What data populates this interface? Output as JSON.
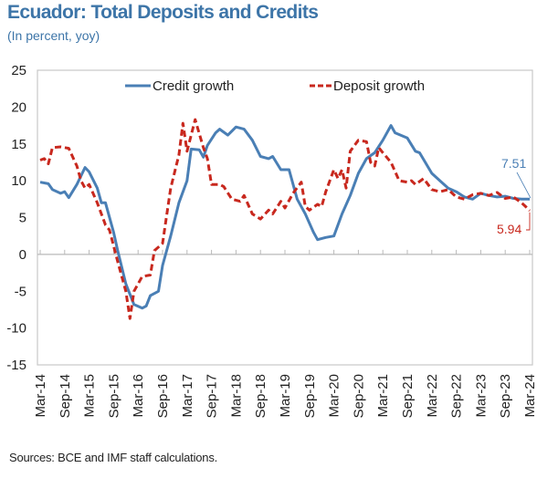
{
  "chart_data": {
    "type": "line",
    "title": "Ecuador: Total Deposits and Credits",
    "subtitle": "(In percent, yoy)",
    "xlabel": "",
    "ylabel": "",
    "ylim": [
      -15,
      25
    ],
    "yticks": [
      25,
      20,
      15,
      10,
      5,
      0,
      -5,
      -10,
      -15
    ],
    "ytick_labels": [
      "25",
      "20",
      "15",
      "10",
      "5",
      "0",
      "-5",
      "-10",
      "-15"
    ],
    "x_start": "Mar-14",
    "x_unit": "months since Mar-14",
    "xlim": [
      0,
      120
    ],
    "xticks": [
      0,
      6,
      12,
      18,
      24,
      30,
      36,
      42,
      48,
      54,
      60,
      66,
      72,
      78,
      84,
      90,
      96,
      102,
      108,
      114,
      120
    ],
    "xtick_labels": [
      "Mar-14",
      "Sep-14",
      "Mar-15",
      "Sep-15",
      "Mar-16",
      "Sep-16",
      "Mar-17",
      "Sep-17",
      "Mar-18",
      "Sep-18",
      "Mar-19",
      "Sep-19",
      "Mar-20",
      "Sep-20",
      "Mar-21",
      "Sep-21",
      "Mar-22",
      "Sep-22",
      "Mar-23",
      "Sep-23",
      "Mar-24"
    ],
    "grid": false,
    "legend_position": "top-center",
    "series": [
      {
        "name": "Credit growth",
        "color": "#4a7fb5",
        "style": "solid",
        "x": [
          0,
          2,
          3,
          5,
          6,
          7,
          9,
          11,
          12,
          14,
          15,
          16,
          18,
          19,
          21,
          23,
          25,
          26,
          27,
          29,
          30,
          32,
          34,
          36,
          37,
          39,
          40,
          41,
          43,
          44,
          46,
          48,
          50,
          52,
          54,
          56,
          57,
          59,
          61,
          63,
          65,
          67,
          68,
          70,
          72,
          74,
          76,
          78,
          80,
          82,
          84,
          86,
          87,
          90,
          92,
          93,
          96,
          98,
          100,
          102,
          104,
          106,
          108,
          110,
          112,
          114,
          116,
          118,
          120
        ],
        "values": [
          9.8,
          9.6,
          8.8,
          8.3,
          8.5,
          7.7,
          9.5,
          11.8,
          11.2,
          9.0,
          7.0,
          7.0,
          3.0,
          0.5,
          -4.0,
          -6.8,
          -7.3,
          -7.0,
          -5.6,
          -5.0,
          -1.5,
          2.5,
          7.0,
          10.0,
          14.3,
          14.2,
          13.2,
          14.8,
          16.5,
          17.0,
          16.2,
          17.3,
          17.0,
          15.5,
          13.3,
          13.0,
          13.3,
          11.5,
          11.5,
          7.5,
          5.5,
          3.0,
          2.0,
          2.3,
          2.5,
          5.5,
          8.0,
          11.0,
          13.0,
          13.8,
          15.5,
          17.5,
          16.5,
          15.8,
          14.0,
          13.8,
          11.0,
          10.0,
          9.0,
          8.5,
          7.8,
          7.5,
          8.3,
          8.0,
          7.8,
          7.9,
          7.6,
          7.5,
          7.51
        ]
      },
      {
        "name": "Deposit growth",
        "color": "#c8281e",
        "style": "dashed",
        "x": [
          0,
          1,
          2,
          3,
          5,
          7,
          9,
          10,
          11,
          12,
          14,
          16,
          17,
          19,
          21,
          22,
          23,
          25,
          27,
          28,
          30,
          32,
          34,
          35,
          36,
          38,
          40,
          41,
          42,
          44,
          45,
          47,
          49,
          50,
          52,
          54,
          56,
          57,
          59,
          60,
          62,
          64,
          65,
          66,
          68,
          69,
          70,
          72,
          73,
          74,
          75,
          76,
          78,
          80,
          81,
          82,
          83,
          84,
          86,
          88,
          90,
          91,
          92,
          94,
          96,
          98,
          100,
          102,
          104,
          106,
          108,
          110,
          112,
          114,
          116,
          118,
          119,
          120
        ],
        "values": [
          12.8,
          13.0,
          12.3,
          14.5,
          14.6,
          14.4,
          12.0,
          10.0,
          9.0,
          9.5,
          7.0,
          4.0,
          3.3,
          -1.0,
          -5.0,
          -8.7,
          -5.0,
          -3.0,
          -2.8,
          0.5,
          1.5,
          9.0,
          13.5,
          17.8,
          14.0,
          18.3,
          14.5,
          13.0,
          9.5,
          9.5,
          9.2,
          7.5,
          7.2,
          8.0,
          5.5,
          4.8,
          6.0,
          5.5,
          7.2,
          6.3,
          8.3,
          9.8,
          6.5,
          6.0,
          6.8,
          6.5,
          8.5,
          11.5,
          10.3,
          11.5,
          9.0,
          14.0,
          15.5,
          15.3,
          12.5,
          12.0,
          14.5,
          13.8,
          12.5,
          10.0,
          9.8,
          10.0,
          9.5,
          10.3,
          8.8,
          8.5,
          8.8,
          7.8,
          7.5,
          8.1,
          8.3,
          8.0,
          8.4,
          7.6,
          7.8,
          7.0,
          6.5,
          5.94
        ]
      }
    ],
    "annotations": [
      {
        "series": "Credit growth",
        "text": "7.51",
        "color": "#4a7fb5"
      },
      {
        "series": "Deposit growth",
        "text": "5.94",
        "color": "#c8281e"
      }
    ]
  },
  "source": "Sources: BCE and IMF staff calculations."
}
